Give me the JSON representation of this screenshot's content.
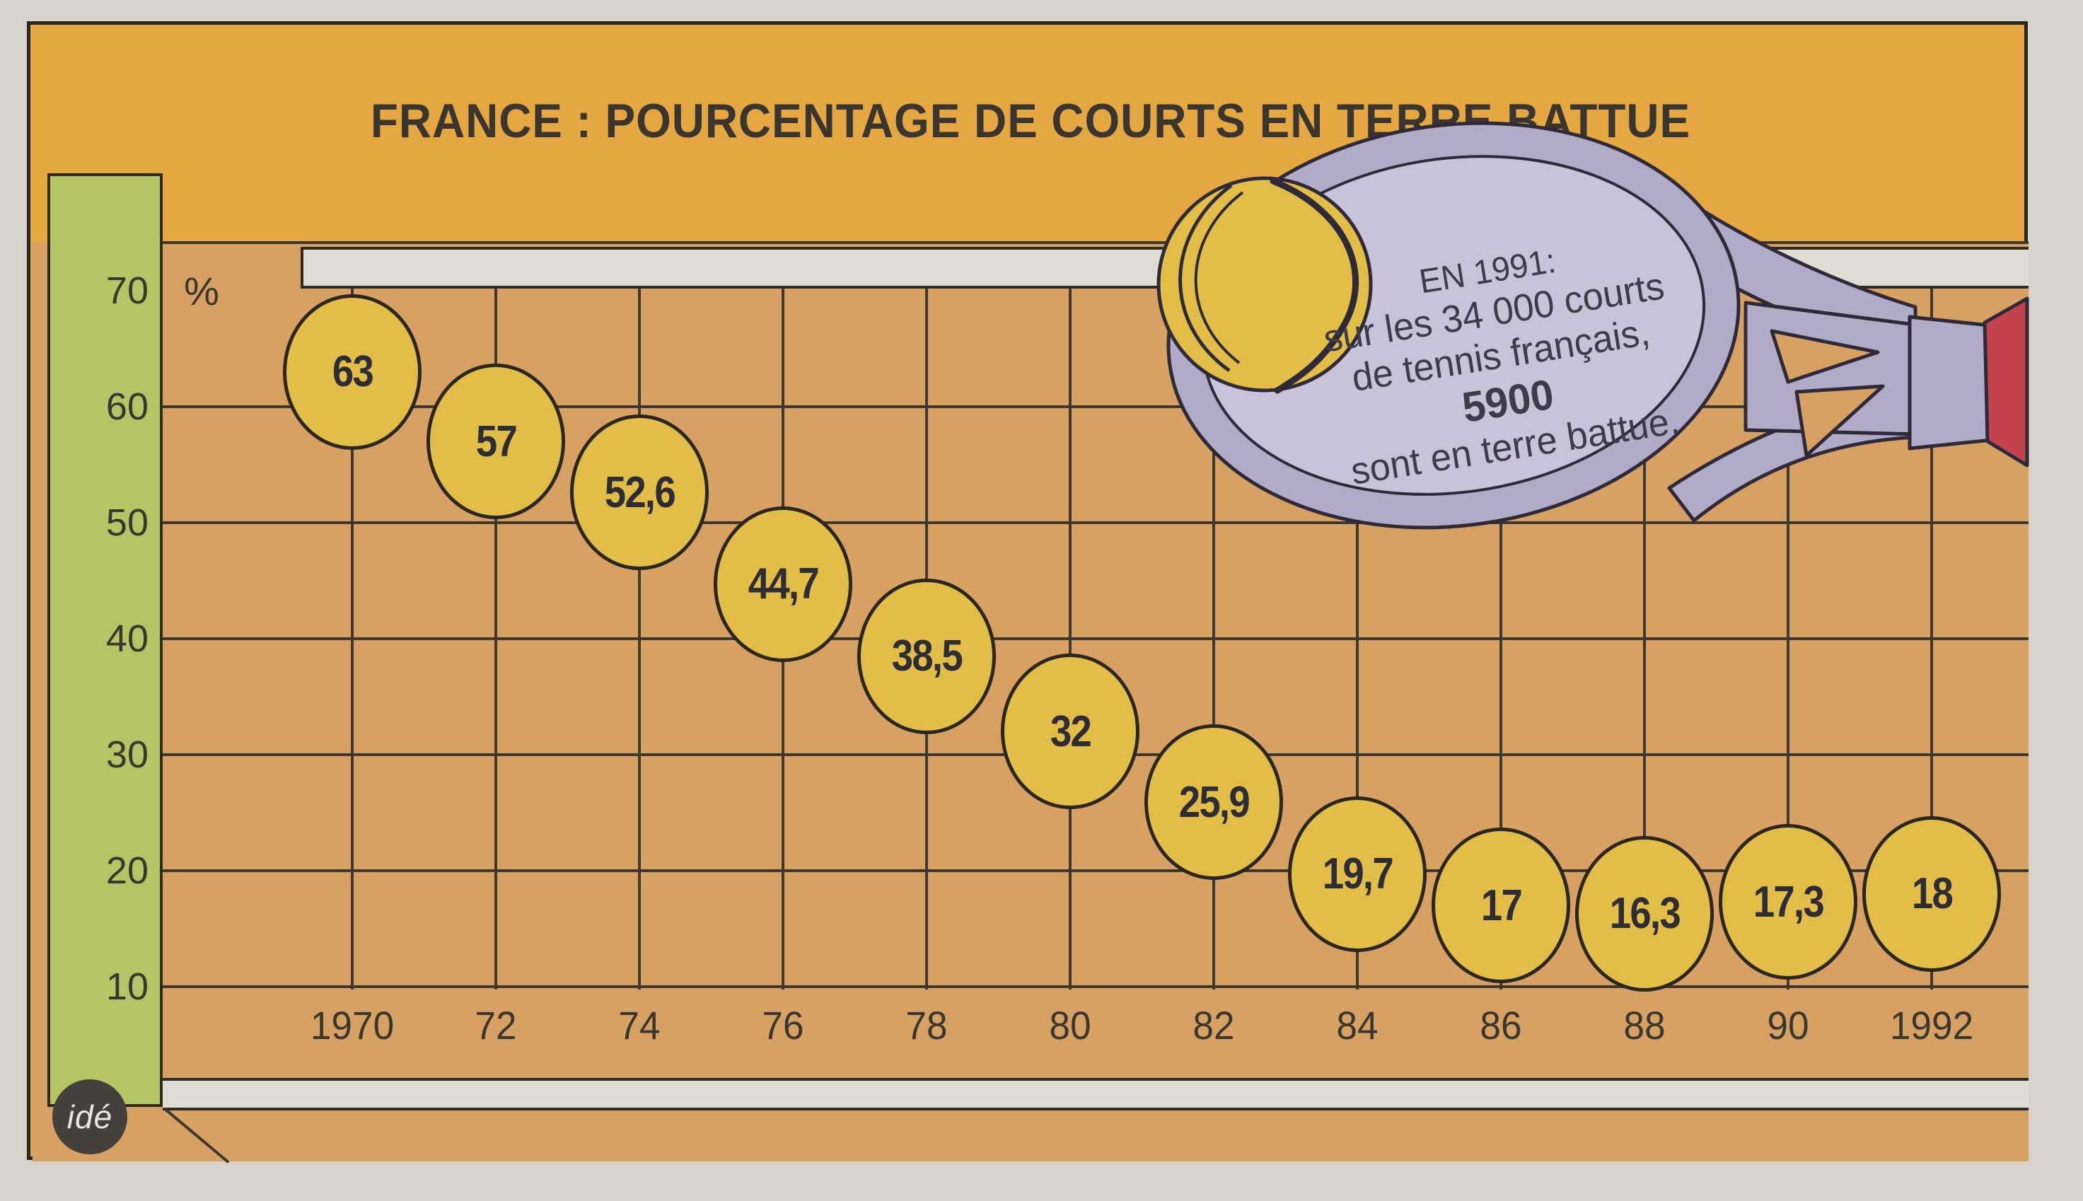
{
  "title": "FRANCE : POURCENTAGE DE COURTS EN TERRE BATTUE",
  "chart_data": {
    "type": "scatter",
    "title": "FRANCE : POURCENTAGE DE COURTS EN TERRE BATTUE",
    "x_tick_labels": [
      "1970",
      "72",
      "74",
      "76",
      "78",
      "80",
      "82",
      "84",
      "86",
      "88",
      "90",
      "1992"
    ],
    "x_years": [
      1970,
      1972,
      1974,
      1976,
      1978,
      1980,
      1982,
      1984,
      1986,
      1988,
      1990,
      1992
    ],
    "values": [
      63,
      57,
      52.6,
      44.7,
      38.5,
      32,
      25.9,
      19.7,
      17,
      16.3,
      17.3,
      18
    ],
    "point_labels": [
      "63",
      "57",
      "52,6",
      "44,7",
      "38,5",
      "32",
      "25,9",
      "19,7",
      "17",
      "16,3",
      "17,3",
      "18"
    ],
    "y_ticks": [
      70,
      60,
      50,
      40,
      30,
      20,
      10
    ],
    "y_unit": "%",
    "ylim": [
      10,
      70
    ],
    "grid": true,
    "legend_position": "none",
    "marker_style": "tennis-ball"
  },
  "annotation": {
    "lines": [
      "EN 1991:",
      "sur les 34 000 courts",
      "de tennis français,",
      "5900",
      "sont en terre battue."
    ],
    "bold_line_index": 3
  },
  "logo": {
    "text": "idé"
  },
  "colors": {
    "panel_orange": "#e4a742",
    "plot_tan": "#d7a164",
    "axis_green": "#b5c464",
    "ball_yellow": "#e2bd47",
    "racket_face": "#c9c3da",
    "racket_rim": "#b2abc8",
    "grip_red": "#c2424e",
    "strip_white": "#dfdcd3",
    "line_ink": "#3e382e",
    "text_ink": "#3a362f"
  }
}
